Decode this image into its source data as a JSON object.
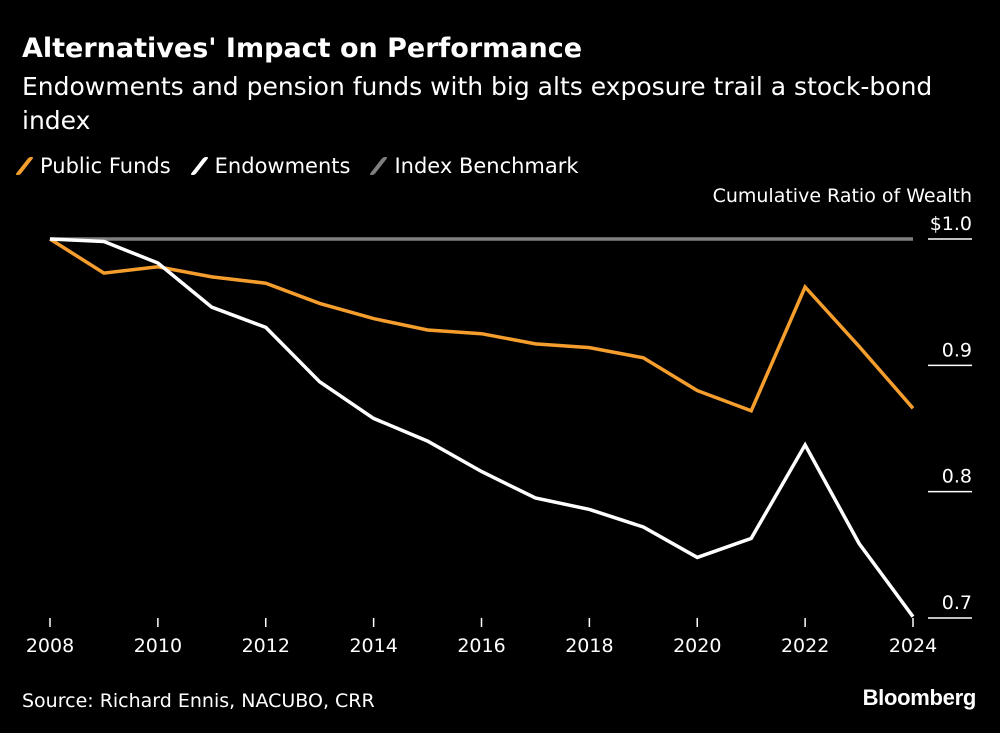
{
  "header": {
    "title": "Alternatives' Impact on Performance",
    "subtitle": "Endowments and pension funds with big alts exposure trail a stock-bond index"
  },
  "legend": [
    {
      "name": "Public Funds",
      "color": "#F59E2E"
    },
    {
      "name": "Endowments",
      "color": "#FFFFFF"
    },
    {
      "name": "Index Benchmark",
      "color": "#7F7F7F"
    }
  ],
  "footer": {
    "source": "Source: Richard Ennis, NACUBO, CRR",
    "brand": "Bloomberg"
  },
  "chart_data": {
    "type": "line",
    "ylabel": "Cumulative Ratio of Wealth",
    "x": [
      2008,
      2009,
      2010,
      2011,
      2012,
      2013,
      2014,
      2015,
      2016,
      2017,
      2018,
      2019,
      2020,
      2021,
      2022,
      2023,
      2024
    ],
    "xticks": [
      2008,
      2010,
      2012,
      2014,
      2016,
      2018,
      2020,
      2022,
      2024
    ],
    "xtick_labels": [
      "2008",
      "2010",
      "2012",
      "2014",
      "2016",
      "2018",
      "2020",
      "2022",
      "2024"
    ],
    "yticks": [
      1.0,
      0.9,
      0.8,
      0.7
    ],
    "ytick_labels": [
      "$1.0",
      "0.9",
      "0.8",
      "0.7"
    ],
    "ylim": [
      0.7,
      1.0
    ],
    "xlim": [
      2008,
      2024
    ],
    "grid": false,
    "legend_position": "top-left",
    "series": [
      {
        "name": "Public Funds",
        "color": "#F59E2E",
        "values": [
          1.0,
          0.973,
          0.978,
          0.97,
          0.965,
          0.949,
          0.937,
          0.928,
          0.925,
          0.917,
          0.914,
          0.906,
          0.88,
          0.864,
          0.962,
          0.915,
          0.866
        ]
      },
      {
        "name": "Endowments",
        "color": "#FFFFFF",
        "values": [
          1.0,
          0.998,
          0.981,
          0.946,
          0.93,
          0.887,
          0.858,
          0.84,
          0.816,
          0.795,
          0.786,
          0.772,
          0.748,
          0.763,
          0.837,
          0.759,
          0.701
        ]
      },
      {
        "name": "Index Benchmark",
        "color": "#7F7F7F",
        "values": [
          1.0,
          1.0,
          1.0,
          1.0,
          1.0,
          1.0,
          1.0,
          1.0,
          1.0,
          1.0,
          1.0,
          1.0,
          1.0,
          1.0,
          1.0,
          1.0,
          1.0
        ]
      }
    ]
  }
}
